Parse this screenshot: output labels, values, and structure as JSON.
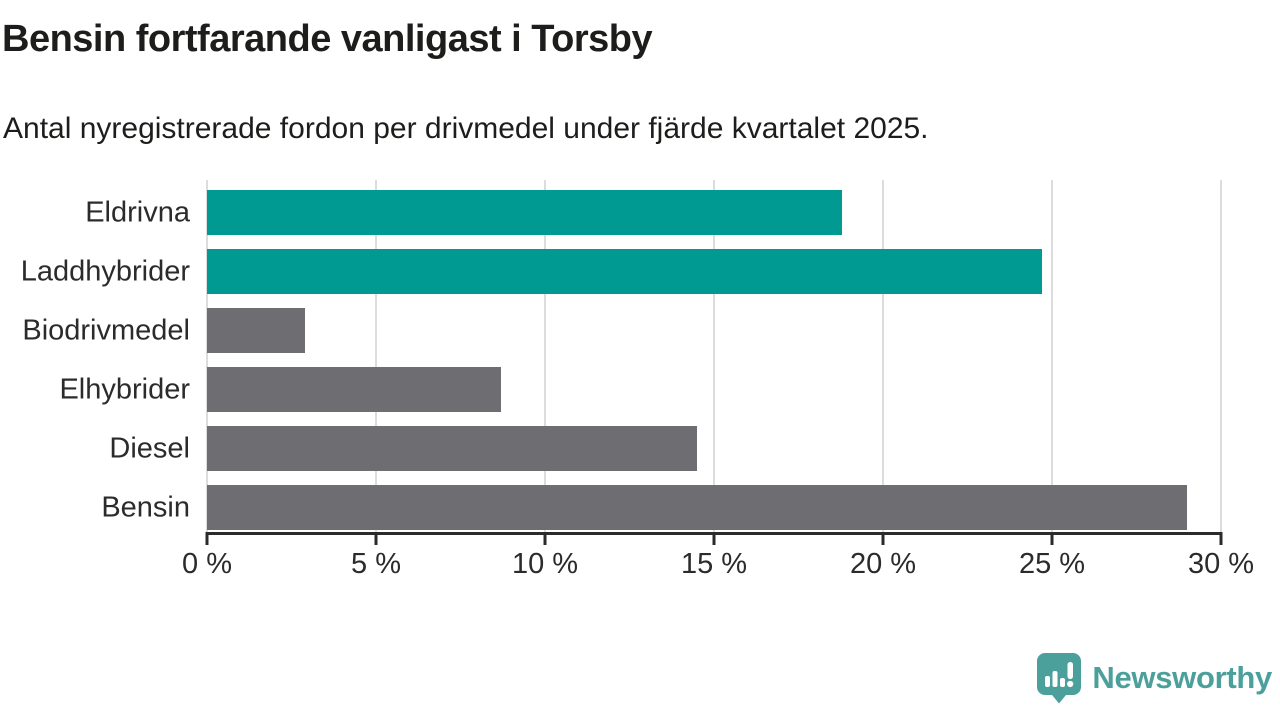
{
  "header": {
    "title": "Bensin fortfarande vanligast i Torsby",
    "subtitle": "Antal nyregistrerade fordon per drivmedel under fjärde kvartalet 2025."
  },
  "chart_data": {
    "type": "bar",
    "orientation": "horizontal",
    "title": "Bensin fortfarande vanligast i Torsby",
    "subtitle": "Antal nyregistrerade fordon per drivmedel under fjärde kvartalet 2025.",
    "categories": [
      "Eldrivna",
      "Laddhybrider",
      "Biodrivmedel",
      "Elhybrider",
      "Diesel",
      "Bensin"
    ],
    "values": [
      18.8,
      24.7,
      2.9,
      8.7,
      14.5,
      29.0
    ],
    "unit": "%",
    "bar_colors": [
      "#009A93",
      "#009A93",
      "#6D6D72",
      "#6D6D72",
      "#6D6D72",
      "#6D6D72"
    ],
    "xlabel": "",
    "ylabel": "",
    "xlim": [
      0,
      30
    ],
    "x_ticks": [
      0,
      5,
      10,
      15,
      20,
      25,
      30
    ],
    "x_tick_labels": [
      "0 %",
      "5 %",
      "10 %",
      "15 %",
      "20 %",
      "25 %",
      "30 %"
    ],
    "grid": "vertical-only",
    "legend": "none"
  },
  "footer": {
    "brand": "Newsworthy",
    "brand_color": "#4CA09B"
  },
  "colors": {
    "highlight_teal": "#009A93",
    "neutral_gray": "#6D6D72",
    "gridline": "#DCDCDC",
    "axis": "#2B2B2B",
    "text": "#1D1D1B"
  }
}
